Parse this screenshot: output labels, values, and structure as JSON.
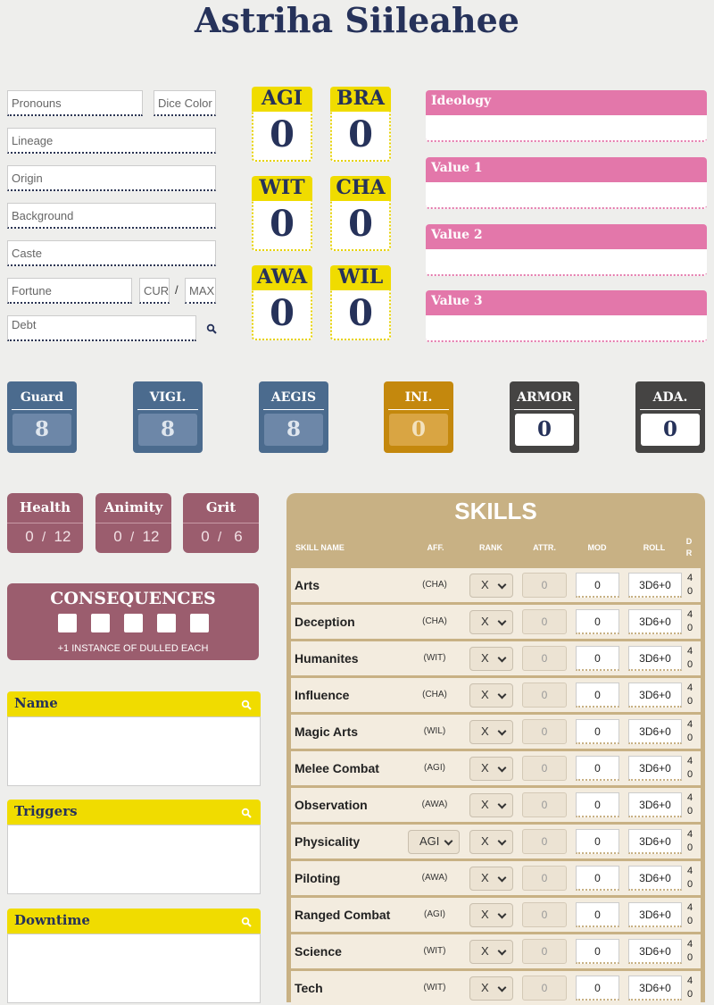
{
  "title": "Astriha Siileahee",
  "identity": {
    "pronouns": "Pronouns",
    "dice_color": "Dice Color",
    "lineage": "Lineage",
    "origin": "Origin",
    "background": "Background",
    "caste": "Caste",
    "fortune": "Fortune",
    "fortune_current": "CUR",
    "fortune_separator": "/",
    "fortune_max": "MAX",
    "debt": "Debt"
  },
  "attributes": [
    {
      "label": "AGI",
      "value": 0
    },
    {
      "label": "BRA",
      "value": 0
    },
    {
      "label": "WIT",
      "value": 0
    },
    {
      "label": "CHA",
      "value": 0
    },
    {
      "label": "AWA",
      "value": 0
    },
    {
      "label": "WIL",
      "value": 0
    }
  ],
  "beliefs": [
    "Ideology",
    "Value 1",
    "Value 2",
    "Value 3"
  ],
  "defenses": [
    {
      "label": "Guard",
      "value": 8,
      "color": "#4b6b8e",
      "inner": "#6d87a8",
      "text": "#dfe6ee"
    },
    {
      "label": "VIGI.",
      "value": 8,
      "color": "#4b6b8e",
      "inner": "#6d87a8",
      "text": "#dfe6ee"
    },
    {
      "label": "AEGIS",
      "value": 8,
      "color": "#4b6b8e",
      "inner": "#6d87a8",
      "text": "#dfe6ee"
    },
    {
      "label": "INI.",
      "value": 0,
      "color": "#c4880d",
      "inner": "#d9a543",
      "text": "#f3e2bd"
    },
    {
      "label": "ARMOR",
      "value": 0,
      "color": "#454443",
      "inner": "#ffffff",
      "text": "#26325a"
    },
    {
      "label": "ADA.",
      "value": 0,
      "color": "#454443",
      "inner": "#ffffff",
      "text": "#26325a"
    }
  ],
  "pool_separator": "/",
  "pools": [
    {
      "label": "Health",
      "current": 0,
      "max": 12
    },
    {
      "label": "Animity",
      "current": 0,
      "max": 12
    },
    {
      "label": "Grit",
      "current": 0,
      "max": 6
    }
  ],
  "consequences": {
    "title": "CONSEQUENCES",
    "boxes": 5,
    "note": "+1 INSTANCE OF DULLED EACH"
  },
  "notes": [
    "Name",
    "Triggers",
    "Downtime"
  ],
  "skills": {
    "title": "SKILLS",
    "columns": [
      "SKILL NAME",
      "AFF.",
      "RANK",
      "ATTR.",
      "MOD",
      "ROLL",
      "DR"
    ],
    "rows": [
      {
        "name": "Arts",
        "affinity": "(CHA)",
        "rank": "X",
        "attribute": 0,
        "modifier": 0,
        "roll": "3D6+0",
        "dr": 40
      },
      {
        "name": "Deception",
        "affinity": "(CHA)",
        "rank": "X",
        "attribute": 0,
        "modifier": 0,
        "roll": "3D6+0",
        "dr": 40
      },
      {
        "name": "Humanites",
        "affinity": "(WIT)",
        "rank": "X",
        "attribute": 0,
        "modifier": 0,
        "roll": "3D6+0",
        "dr": 40
      },
      {
        "name": "Influence",
        "affinity": "(CHA)",
        "rank": "X",
        "attribute": 0,
        "modifier": 0,
        "roll": "3D6+0",
        "dr": 40
      },
      {
        "name": "Magic Arts",
        "affinity": "(WIL)",
        "rank": "X",
        "attribute": 0,
        "modifier": 0,
        "roll": "3D6+0",
        "dr": 40
      },
      {
        "name": "Melee Combat",
        "affinity": "(AGI)",
        "rank": "X",
        "attribute": 0,
        "modifier": 0,
        "roll": "3D6+0",
        "dr": 40
      },
      {
        "name": "Observation",
        "affinity": "(AWA)",
        "rank": "X",
        "attribute": 0,
        "modifier": 0,
        "roll": "3D6+0",
        "dr": 40
      },
      {
        "name": "Physicality",
        "affinity": "AGI",
        "affinity_select": true,
        "rank": "X",
        "attribute": 0,
        "modifier": 0,
        "roll": "3D6+0",
        "dr": 40
      },
      {
        "name": "Piloting",
        "affinity": "(AWA)",
        "rank": "X",
        "attribute": 0,
        "modifier": 0,
        "roll": "3D6+0",
        "dr": 40
      },
      {
        "name": "Ranged Combat",
        "affinity": "(AGI)",
        "rank": "X",
        "attribute": 0,
        "modifier": 0,
        "roll": "3D6+0",
        "dr": 40
      },
      {
        "name": "Science",
        "affinity": "(WIT)",
        "rank": "X",
        "attribute": 0,
        "modifier": 0,
        "roll": "3D6+0",
        "dr": 40
      },
      {
        "name": "Tech",
        "affinity": "(WIT)",
        "rank": "X",
        "attribute": 0,
        "modifier": 0,
        "roll": "3D6+0",
        "dr": 40
      }
    ]
  }
}
